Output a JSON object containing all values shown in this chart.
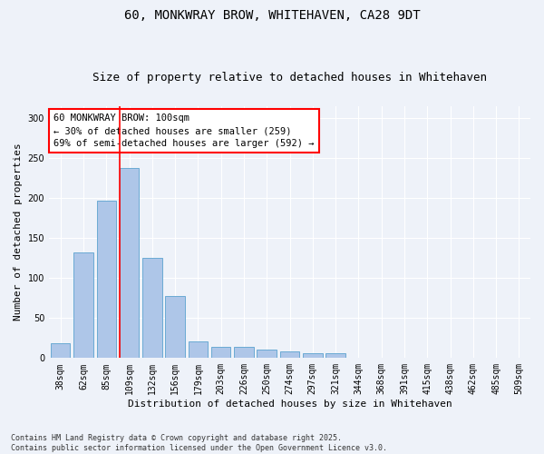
{
  "title_line1": "60, MONKWRAY BROW, WHITEHAVEN, CA28 9DT",
  "title_line2": "Size of property relative to detached houses in Whitehaven",
  "xlabel": "Distribution of detached houses by size in Whitehaven",
  "ylabel": "Number of detached properties",
  "categories": [
    "38sqm",
    "62sqm",
    "85sqm",
    "109sqm",
    "132sqm",
    "156sqm",
    "179sqm",
    "203sqm",
    "226sqm",
    "250sqm",
    "274sqm",
    "297sqm",
    "321sqm",
    "344sqm",
    "368sqm",
    "391sqm",
    "415sqm",
    "438sqm",
    "462sqm",
    "485sqm",
    "509sqm"
  ],
  "values": [
    19,
    132,
    197,
    238,
    125,
    77,
    21,
    14,
    14,
    11,
    8,
    6,
    6,
    0,
    0,
    0,
    0,
    0,
    0,
    0,
    0
  ],
  "bar_color": "#aec6e8",
  "bar_edge_color": "#6aaad4",
  "vline_color": "red",
  "annotation_text": "60 MONKWRAY BROW: 100sqm\n← 30% of detached houses are smaller (259)\n69% of semi-detached houses are larger (592) →",
  "annotation_box_color": "white",
  "annotation_box_edge": "red",
  "ylim": [
    0,
    315
  ],
  "yticks": [
    0,
    50,
    100,
    150,
    200,
    250,
    300
  ],
  "footnote": "Contains HM Land Registry data © Crown copyright and database right 2025.\nContains public sector information licensed under the Open Government Licence v3.0.",
  "bg_color": "#eef2f9",
  "title_fontsize": 10,
  "subtitle_fontsize": 9,
  "axis_label_fontsize": 8,
  "tick_fontsize": 7,
  "annotation_fontsize": 7.5,
  "footnote_fontsize": 6
}
